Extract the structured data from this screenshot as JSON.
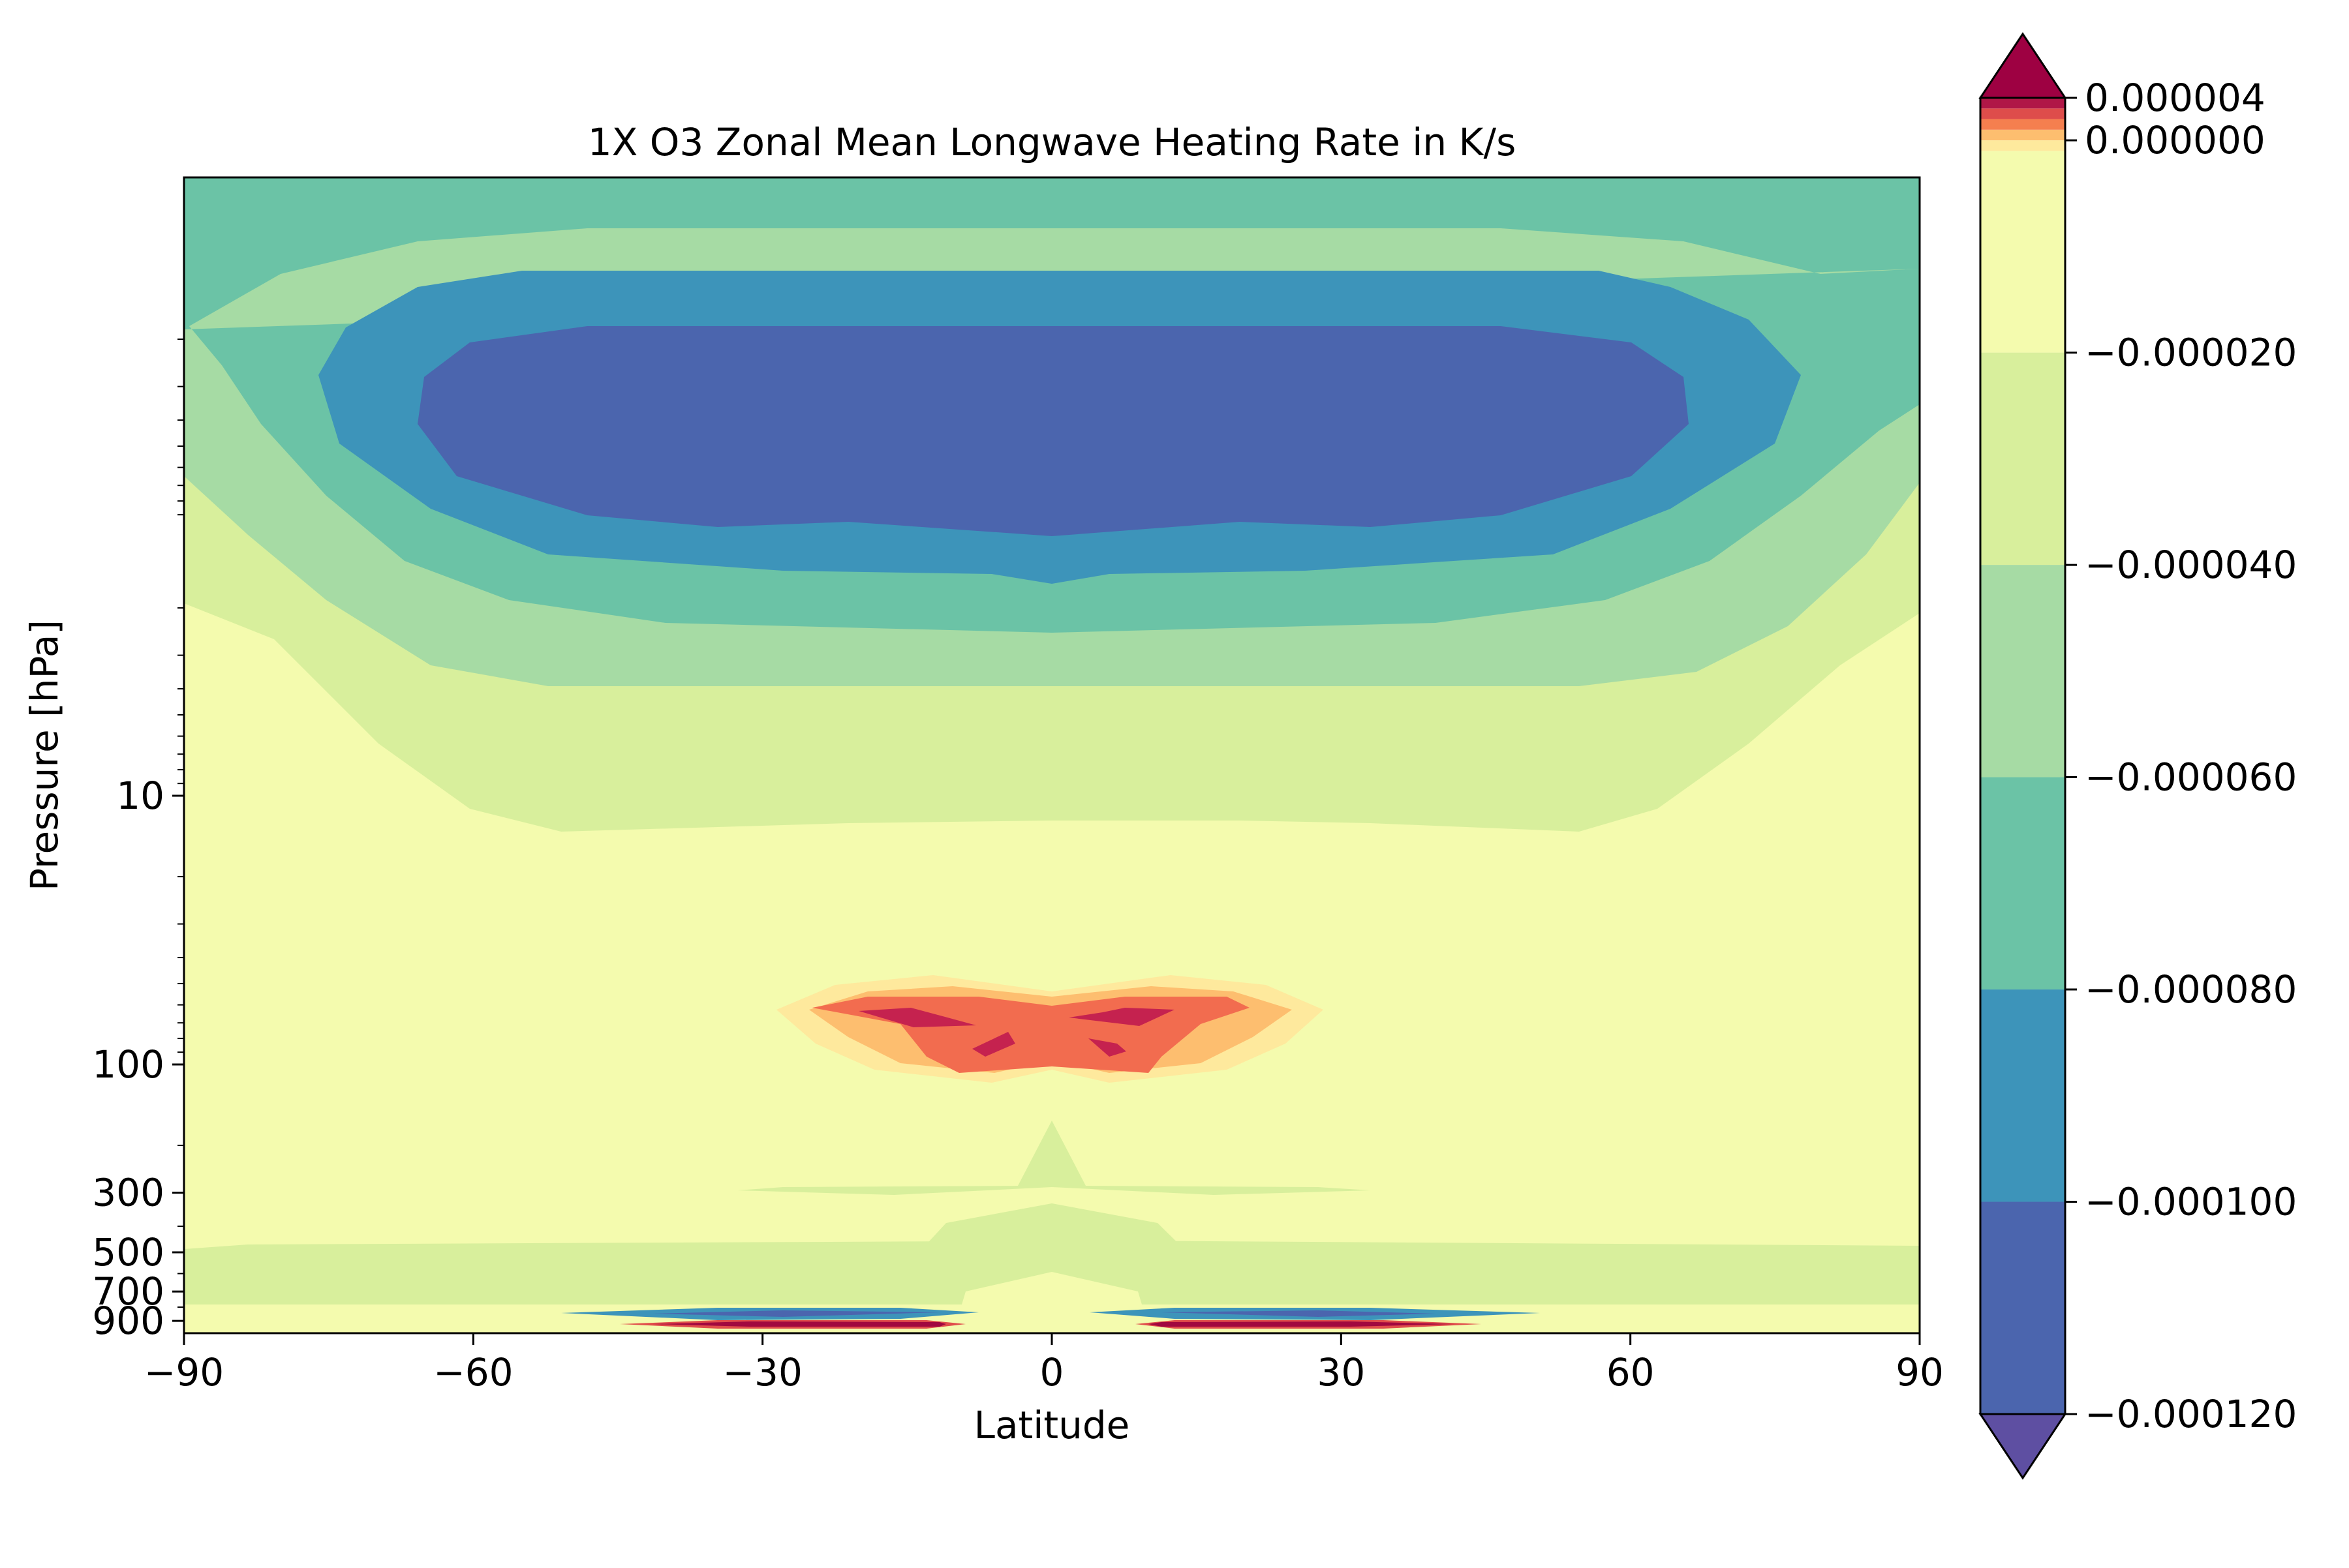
{
  "chart_data": {
    "type": "contourf",
    "title": "1X O3 Zonal Mean Longwave Heating Rate in K/s",
    "xlabel": "Latitude",
    "ylabel": "Pressure [hPa]",
    "xlim": [
      -90,
      90
    ],
    "xticks": [
      {
        "value": -90,
        "label": "−90"
      },
      {
        "value": -60,
        "label": "−60"
      },
      {
        "value": -30,
        "label": "−30"
      },
      {
        "value": 0,
        "label": "0"
      },
      {
        "value": 30,
        "label": "30"
      },
      {
        "value": 60,
        "label": "60"
      },
      {
        "value": 90,
        "label": "90"
      }
    ],
    "y_scale": "log",
    "y_inverted": true,
    "ylim": [
      1000,
      0.05
    ],
    "yticks": [
      {
        "value": 10,
        "label": "10"
      },
      {
        "value": 100,
        "label": "100"
      },
      {
        "value": 300,
        "label": "300"
      },
      {
        "value": 500,
        "label": "500"
      },
      {
        "value": 700,
        "label": "700"
      },
      {
        "value": 900,
        "label": "900"
      }
    ],
    "colormap": "Spectral_r",
    "colorbar": {
      "extend": "both",
      "tick_labels": [
        {
          "value": 4e-06,
          "label": "0.000004"
        },
        {
          "value": 0.0,
          "label": "0.000000"
        },
        {
          "value": -2e-05,
          "label": "−0.000020"
        },
        {
          "value": -4e-05,
          "label": "−0.000040"
        },
        {
          "value": -6e-05,
          "label": "−0.000060"
        },
        {
          "value": -8e-05,
          "label": "−0.000080"
        },
        {
          "value": -0.0001,
          "label": "−0.000100"
        },
        {
          "value": -0.00012,
          "label": "−0.000120"
        }
      ],
      "levels": [
        {
          "from": -0.00012,
          "to": -0.0001,
          "color": "#4b65ae"
        },
        {
          "from": -0.0001,
          "to": -8e-05,
          "color": "#3d94ba"
        },
        {
          "from": -8e-05,
          "to": -6e-05,
          "color": "#6bc3a6"
        },
        {
          "from": -6e-05,
          "to": -4e-05,
          "color": "#a6dba4"
        },
        {
          "from": -4e-05,
          "to": -2e-05,
          "color": "#d8ef9c"
        },
        {
          "from": -2e-05,
          "to": -1e-06,
          "color": "#f4fbae"
        },
        {
          "from": -1e-06,
          "to": 0.0,
          "color": "#fee99d"
        },
        {
          "from": 0.0,
          "to": 1e-06,
          "color": "#fdbe6f"
        },
        {
          "from": 1e-06,
          "to": 2e-06,
          "color": "#f57f4f"
        },
        {
          "from": 2e-06,
          "to": 3e-06,
          "color": "#de4d4b"
        },
        {
          "from": 3e-06,
          "to": 4e-06,
          "color": "#b01747"
        }
      ],
      "under_color": "#5e4fa2",
      "over_color": "#9e0142"
    }
  }
}
